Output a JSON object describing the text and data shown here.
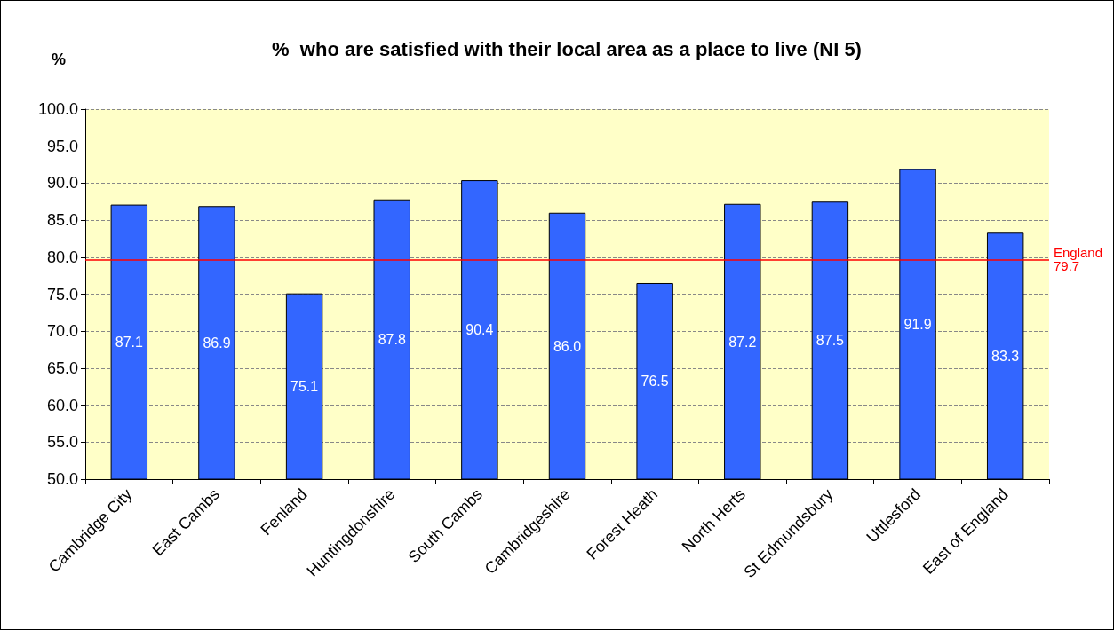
{
  "chart_data": {
    "type": "bar",
    "title": "%  who are satisfied with their local area as a place to live (NI 5)",
    "ylabel": "%",
    "categories": [
      "Cambridge City",
      "East Cambs",
      "Fenland",
      "Huntingdonshire",
      "South Cambs",
      "Cambridgeshire",
      "Forest Heath",
      "North Herts",
      "St Edmundsbury",
      "Uttlesford",
      "East of England"
    ],
    "values": [
      87.1,
      86.9,
      75.1,
      87.8,
      90.4,
      86.0,
      76.5,
      87.2,
      87.5,
      91.9,
      83.3
    ],
    "color": "#3366ff",
    "value_labels": [
      "87.1",
      "86.9",
      "75.1",
      "87.8",
      "90.4",
      "86.0",
      "76.5",
      "87.2",
      "87.5",
      "91.9",
      "83.3"
    ],
    "ylim": [
      50,
      100
    ],
    "yticks": [
      {
        "value": 50,
        "label": "50.0"
      },
      {
        "value": 55,
        "label": "55.0"
      },
      {
        "value": 60,
        "label": "60.0"
      },
      {
        "value": 65,
        "label": "65.0"
      },
      {
        "value": 70,
        "label": "70.0"
      },
      {
        "value": 75,
        "label": "75.0"
      },
      {
        "value": 80,
        "label": "80.0"
      },
      {
        "value": 85,
        "label": "85.0"
      },
      {
        "value": 90,
        "label": "90.0"
      },
      {
        "value": 95,
        "label": "95.0"
      },
      {
        "value": 100,
        "label": "100.0"
      }
    ],
    "grid": "y",
    "ref_lines": [
      {
        "axis": "y",
        "value": 79.7,
        "label": "England\n79.7",
        "color": "#ff0000"
      }
    ]
  }
}
